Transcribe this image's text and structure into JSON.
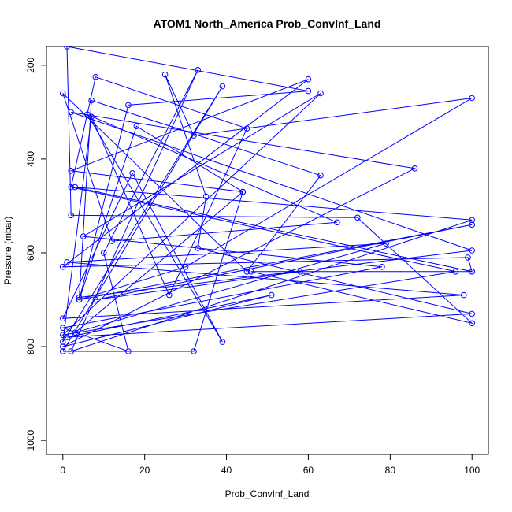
{
  "chart_data": {
    "type": "line",
    "title": "ATOM1 North_America Prob_ConvInf_Land",
    "xlabel": "Prob_ConvInf_Land",
    "ylabel": "Pressure (mbar)",
    "xlim": [
      -4,
      104
    ],
    "ylim": [
      1030,
      160
    ],
    "y_reversed": true,
    "grid": false,
    "legend": "none",
    "x_ticks": [
      0,
      20,
      40,
      60,
      80,
      100
    ],
    "y_ticks": [
      200,
      400,
      600,
      800,
      1000
    ],
    "color": "#0000ff",
    "series": [
      {
        "points": [
          [
            0,
            810
          ],
          [
            32,
            810
          ],
          [
            44,
            470
          ],
          [
            18,
            330
          ],
          [
            4,
            700
          ],
          [
            16,
            285
          ],
          [
            60,
            255
          ],
          [
            1,
            160
          ],
          [
            2,
            520
          ],
          [
            72,
            525
          ],
          [
            100,
            750
          ],
          [
            46,
            640
          ],
          [
            100,
            640
          ],
          [
            58,
            640
          ],
          [
            8,
            700
          ],
          [
            100,
            540
          ],
          [
            4,
            700
          ],
          [
            30,
            630
          ],
          [
            100,
            270
          ],
          [
            32,
            350
          ],
          [
            25,
            220
          ],
          [
            35,
            480
          ],
          [
            33,
            590
          ],
          [
            100,
            730
          ],
          [
            1,
            780
          ],
          [
            51,
            690
          ],
          [
            0,
            800
          ],
          [
            86,
            420
          ],
          [
            2,
            300
          ],
          [
            100,
            595
          ],
          [
            4,
            695
          ],
          [
            7,
            275
          ],
          [
            63,
            435
          ],
          [
            45,
            640
          ],
          [
            0,
            260
          ],
          [
            12,
            575
          ],
          [
            67,
            535
          ],
          [
            6,
            305
          ],
          [
            39,
            790
          ],
          [
            17,
            430
          ],
          [
            0,
            740
          ],
          [
            98,
            690
          ],
          [
            1,
            620
          ],
          [
            79,
            580
          ],
          [
            3,
            770
          ],
          [
            44,
            470
          ],
          [
            2,
            425
          ],
          [
            60,
            230
          ],
          [
            0,
            630
          ],
          [
            99,
            610
          ],
          [
            100,
            640
          ],
          [
            3,
            460
          ],
          [
            100,
            530
          ],
          [
            2,
            810
          ],
          [
            33,
            210
          ],
          [
            10,
            600
          ],
          [
            16,
            810
          ],
          [
            0,
            760
          ],
          [
            78,
            630
          ],
          [
            5,
            565
          ],
          [
            63,
            260
          ],
          [
            0,
            775
          ],
          [
            96,
            640
          ],
          [
            2,
            460
          ],
          [
            8,
            225
          ],
          [
            45,
            335
          ],
          [
            26,
            690
          ],
          [
            7,
            310
          ],
          [
            0,
            790
          ],
          [
            39,
            245
          ],
          [
            0,
            810
          ]
        ]
      }
    ]
  }
}
